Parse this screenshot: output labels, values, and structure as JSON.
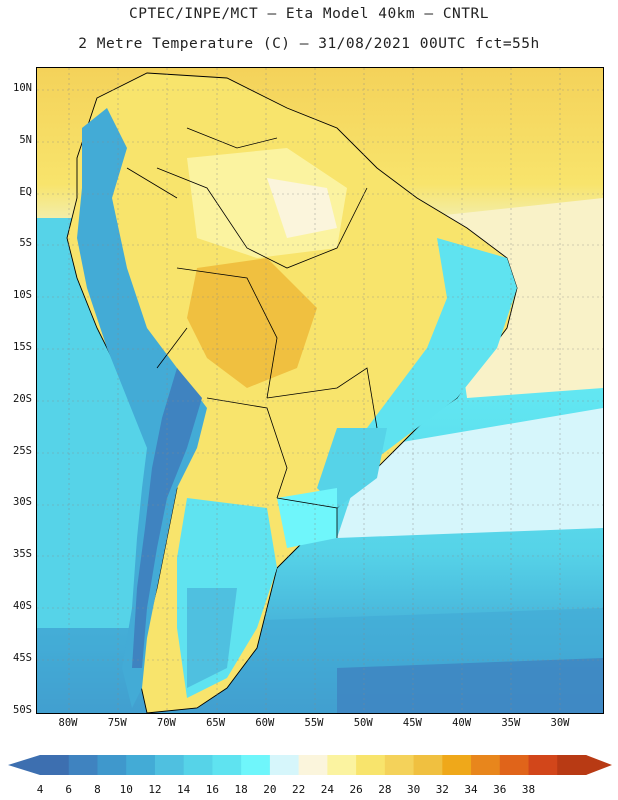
{
  "header": {
    "line1": "CPTEC/INPE/MCT –  Eta Model 40km – CNTRL",
    "line2": "2 Metre Temperature (C) – 31/08/2021 00UTC fct=55h"
  },
  "axes": {
    "lat_labels": [
      "10N",
      "5N",
      "EQ",
      "5S",
      "10S",
      "15S",
      "20S",
      "25S",
      "30S",
      "35S",
      "40S",
      "45S",
      "50S"
    ],
    "lon_labels": [
      "80W",
      "75W",
      "70W",
      "65W",
      "60W",
      "55W",
      "50W",
      "45W",
      "40W",
      "35W",
      "30W"
    ]
  },
  "colorbar": {
    "labels": [
      "4",
      "6",
      "8",
      "10",
      "12",
      "14",
      "16",
      "18",
      "20",
      "22",
      "24",
      "26",
      "28",
      "30",
      "32",
      "34",
      "36",
      "38"
    ],
    "colors": [
      "#3d6fb0",
      "#3f83c0",
      "#3f98cc",
      "#43abd6",
      "#4fc0e0",
      "#56d3e8",
      "#5fe3f0",
      "#6ff6fb",
      "#d6f6fb",
      "#fbf5dc",
      "#fbf3a0",
      "#f8e46c",
      "#f4d25a",
      "#f0c040",
      "#efa81a",
      "#e8861c",
      "#e0641a",
      "#d2461a",
      "#b83a14"
    ]
  }
}
